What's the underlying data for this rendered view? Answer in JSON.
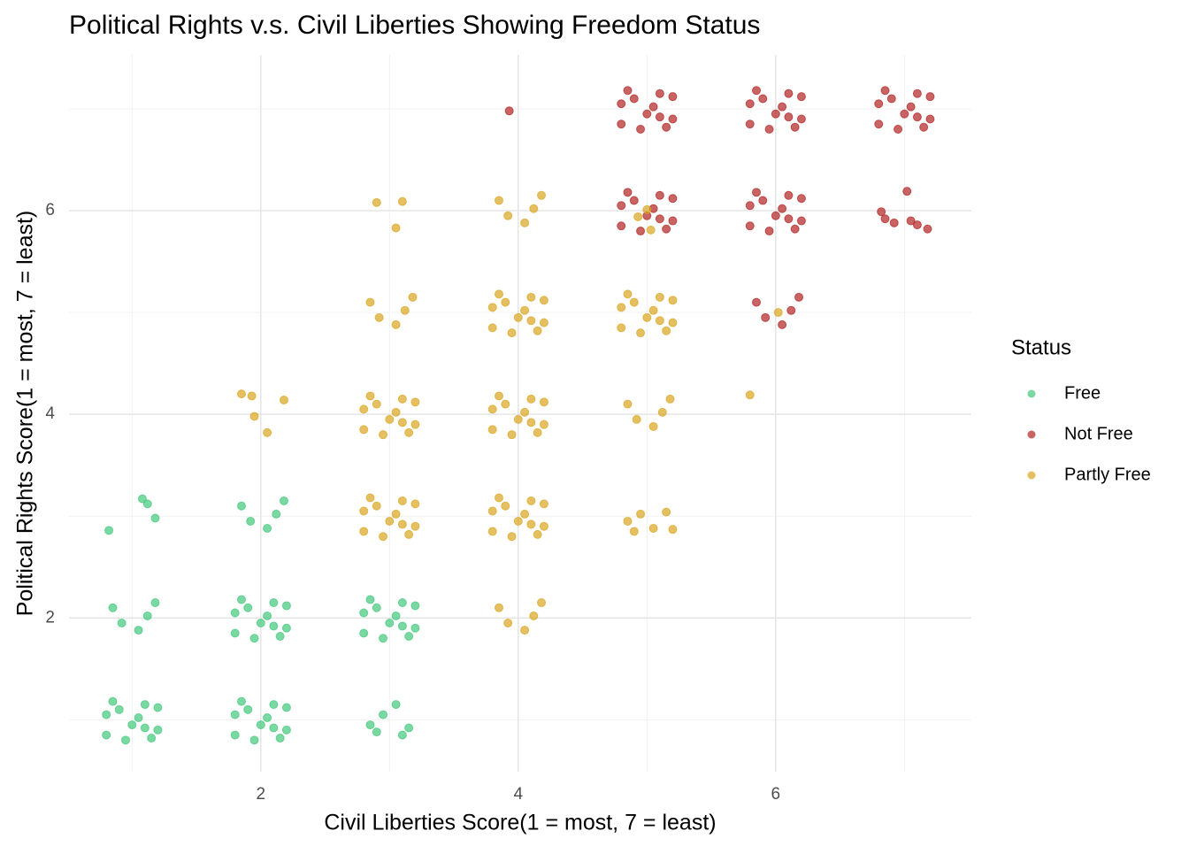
{
  "chart_data": {
    "type": "scatter",
    "title": "Political Rights v.s. Civil Liberties Showing Freedom Status",
    "x_label": "Civil Liberties Score(1 = most, 7 = least)",
    "y_label": "Political Rights Score(1 = most, 7 = least)",
    "legend_title": "Status",
    "legend": "right",
    "grid": true,
    "xlim": [
      0.51,
      7.52
    ],
    "ylim": [
      0.49,
      7.53
    ],
    "xticks": [
      2,
      4,
      6
    ],
    "yticks": [
      2,
      4,
      6
    ],
    "xticks_minor": [
      1,
      3,
      5,
      7
    ],
    "yticks_minor": [
      1,
      3,
      5,
      7
    ],
    "opacity": 0.7,
    "series": [
      {
        "name": "Free",
        "color": "#41c87b",
        "x": [
          0.8,
          0.9,
          1,
          1.1,
          1.2,
          0.85,
          1.05,
          1.15,
          0.95,
          1.2,
          0.8,
          1.1,
          1.8,
          1.9,
          2,
          2.1,
          2.2,
          1.85,
          2.05,
          2.15,
          1.95,
          2.2,
          1.8,
          2.1,
          2.9,
          3.05,
          3.1,
          2.95,
          3.15,
          2.85,
          0.85,
          1.05,
          1.18,
          0.92,
          1.12,
          1.8,
          1.9,
          2,
          2.1,
          2.2,
          1.85,
          2.05,
          2.15,
          1.95,
          2.2,
          1.8,
          2.1,
          2.8,
          2.9,
          3,
          3.1,
          3.2,
          2.85,
          3.05,
          3.15,
          2.95,
          3.2,
          2.8,
          3.1,
          0.82,
          1.08,
          1.12,
          1.18,
          1.85,
          2.05,
          2.18,
          1.92,
          2.12
        ],
        "y": [
          0.85,
          1.1,
          0.95,
          1.15,
          0.9,
          1.18,
          1.02,
          0.82,
          0.8,
          1.12,
          1.05,
          0.92,
          0.85,
          1.1,
          0.95,
          1.15,
          0.9,
          1.18,
          1.02,
          0.82,
          0.8,
          1.12,
          1.05,
          0.92,
          0.88,
          1.15,
          0.85,
          1.05,
          0.92,
          0.95,
          2.1,
          1.88,
          2.15,
          1.95,
          2.02,
          1.85,
          2.1,
          1.95,
          2.15,
          1.9,
          2.18,
          2.02,
          1.82,
          1.8,
          2.12,
          2.05,
          1.92,
          1.85,
          2.1,
          1.95,
          2.15,
          1.9,
          2.18,
          2.02,
          1.82,
          1.8,
          2.12,
          2.05,
          1.92,
          2.86,
          3.17,
          3.12,
          2.98,
          3.1,
          2.88,
          3.15,
          2.95,
          3.02
        ]
      },
      {
        "name": "Not Free",
        "color": "#b22222",
        "x": [
          4.8,
          4.9,
          5,
          5.1,
          5.2,
          4.85,
          5.05,
          5.15,
          4.95,
          5.2,
          4.8,
          5.1,
          5.8,
          5.9,
          6,
          6.1,
          6.2,
          5.85,
          6.05,
          6.15,
          5.95,
          6.2,
          5.8,
          6.1,
          6.8,
          6.9,
          7,
          7.1,
          7.2,
          6.85,
          7.05,
          7.15,
          6.95,
          7.2,
          6.8,
          7.1,
          4.8,
          4.9,
          5,
          5.1,
          5.2,
          4.85,
          5.05,
          5.15,
          4.95,
          5.2,
          4.8,
          5.1,
          5.8,
          5.9,
          6,
          6.1,
          6.2,
          5.85,
          6.05,
          6.15,
          5.95,
          6.2,
          5.8,
          6.1,
          6.82,
          6.85,
          6.92,
          7.02,
          7.05,
          7.1,
          7.18,
          5.85,
          6.05,
          6.18,
          5.92,
          6.12,
          3.93
        ],
        "y": [
          6.85,
          7.1,
          6.95,
          7.15,
          6.9,
          7.18,
          7.02,
          6.82,
          6.8,
          7.12,
          7.05,
          6.92,
          6.85,
          7.1,
          6.95,
          7.15,
          6.9,
          7.18,
          7.02,
          6.82,
          6.8,
          7.12,
          7.05,
          6.92,
          6.85,
          7.1,
          6.95,
          7.15,
          6.9,
          7.18,
          7.02,
          6.82,
          6.8,
          7.12,
          7.05,
          6.92,
          5.85,
          6.1,
          5.95,
          6.15,
          5.9,
          6.18,
          6.02,
          5.82,
          5.8,
          6.12,
          6.05,
          5.92,
          5.85,
          6.1,
          5.95,
          6.15,
          5.9,
          6.18,
          6.02,
          5.82,
          5.8,
          6.12,
          6.05,
          5.92,
          5.99,
          5.92,
          5.88,
          6.19,
          5.9,
          5.86,
          5.82,
          5.1,
          4.88,
          5.15,
          4.95,
          5.02,
          6.98
        ]
      },
      {
        "name": "Partly Free",
        "color": "#daa520",
        "x": [
          2.8,
          2.9,
          3,
          3.1,
          3.2,
          2.85,
          3.05,
          3.15,
          2.95,
          3.2,
          2.8,
          3.1,
          3.8,
          3.9,
          4,
          4.1,
          4.2,
          3.85,
          4.05,
          4.15,
          3.95,
          4.2,
          3.8,
          4.1,
          4.85,
          4.95,
          5.05,
          5.15,
          4.9,
          5.2,
          3.85,
          4.05,
          4.18,
          3.92,
          4.12,
          1.85,
          1.93,
          1.95,
          2.05,
          2.18,
          2.8,
          2.9,
          3,
          3.1,
          3.2,
          2.85,
          3.05,
          3.15,
          2.95,
          3.2,
          2.8,
          3.1,
          3.8,
          3.9,
          4,
          4.1,
          4.2,
          3.85,
          4.05,
          4.15,
          3.95,
          4.2,
          3.8,
          4.1,
          4.85,
          5.05,
          5.18,
          4.92,
          5.12,
          5.8,
          2.85,
          3.05,
          3.18,
          2.92,
          3.12,
          3.8,
          3.9,
          4,
          4.1,
          4.2,
          3.85,
          4.05,
          4.15,
          3.95,
          4.2,
          3.8,
          4.1,
          4.8,
          4.9,
          5,
          5.1,
          5.2,
          4.85,
          5.05,
          5.15,
          4.95,
          5.2,
          4.8,
          5.1,
          2.9,
          3.1,
          3.05,
          3.85,
          4.05,
          4.18,
          3.92,
          4.12,
          4.93,
          5.0,
          5.03,
          6.02
        ],
        "y": [
          2.85,
          3.1,
          2.95,
          3.15,
          2.9,
          3.18,
          3.02,
          2.82,
          2.8,
          3.12,
          3.05,
          2.92,
          2.85,
          3.1,
          2.95,
          3.15,
          2.9,
          3.18,
          3.02,
          2.82,
          2.8,
          3.12,
          3.05,
          2.92,
          2.95,
          3.02,
          2.88,
          3.04,
          2.85,
          2.87,
          2.1,
          1.88,
          2.15,
          1.95,
          2.02,
          4.2,
          4.18,
          3.98,
          3.82,
          4.14,
          3.85,
          4.1,
          3.95,
          4.15,
          3.9,
          4.18,
          4.02,
          3.82,
          3.8,
          4.12,
          4.05,
          3.92,
          3.85,
          4.1,
          3.95,
          4.15,
          3.9,
          4.18,
          4.02,
          3.82,
          3.8,
          4.12,
          4.05,
          3.92,
          4.1,
          3.88,
          4.15,
          3.95,
          4.02,
          4.19,
          5.1,
          4.88,
          5.15,
          4.95,
          5.02,
          4.85,
          5.1,
          4.95,
          5.15,
          4.9,
          5.18,
          5.02,
          4.82,
          4.8,
          5.12,
          5.05,
          4.92,
          4.85,
          5.1,
          4.95,
          5.15,
          4.9,
          5.18,
          5.02,
          4.82,
          4.8,
          5.12,
          5.05,
          4.92,
          6.08,
          6.09,
          5.83,
          6.1,
          5.88,
          6.15,
          5.95,
          6.02,
          5.94,
          6.01,
          5.81,
          5.0
        ]
      }
    ]
  }
}
